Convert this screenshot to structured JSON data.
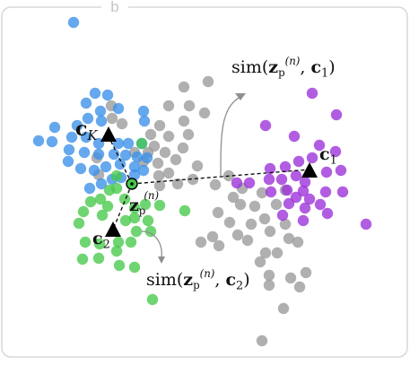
{
  "panel": {
    "tag": "b"
  },
  "colors": {
    "blue": "#3a8fe8",
    "green": "#46c94a",
    "gray": "#9a9a9a",
    "purple": "#9b30d9",
    "frame": "#d8d8d8",
    "arrow": "#8f8f8f"
  },
  "labels": {
    "c1": {
      "base": "c",
      "sub": "1"
    },
    "cK": {
      "base": "c",
      "sub": "K"
    },
    "c2": {
      "base": "c",
      "sub": "2"
    },
    "zp": {
      "base": "z",
      "sub": "p",
      "sup": "(n)"
    },
    "sim1": {
      "prefix": "sim(",
      "z": "z",
      "zsub": "p",
      "zsup": "(n)",
      "sep": ", ",
      "c": "c",
      "csub": "1",
      "suffix": ")"
    },
    "sim2": {
      "prefix": "sim(",
      "z": "z",
      "zsub": "p",
      "zsup": "(n)",
      "sep": ", ",
      "c": "c",
      "csub": "2",
      "suffix": ")"
    }
  },
  "centroids": [
    {
      "name": "cK",
      "color": "black"
    },
    {
      "name": "c1",
      "color": "black"
    },
    {
      "name": "c2",
      "color": "black"
    }
  ],
  "clusters": [
    {
      "name": "blue",
      "color": "#3a8fe8"
    },
    {
      "name": "green",
      "color": "#46c94a"
    },
    {
      "name": "gray",
      "color": "#9a9a9a"
    },
    {
      "name": "purple",
      "color": "#9b30d9"
    }
  ]
}
